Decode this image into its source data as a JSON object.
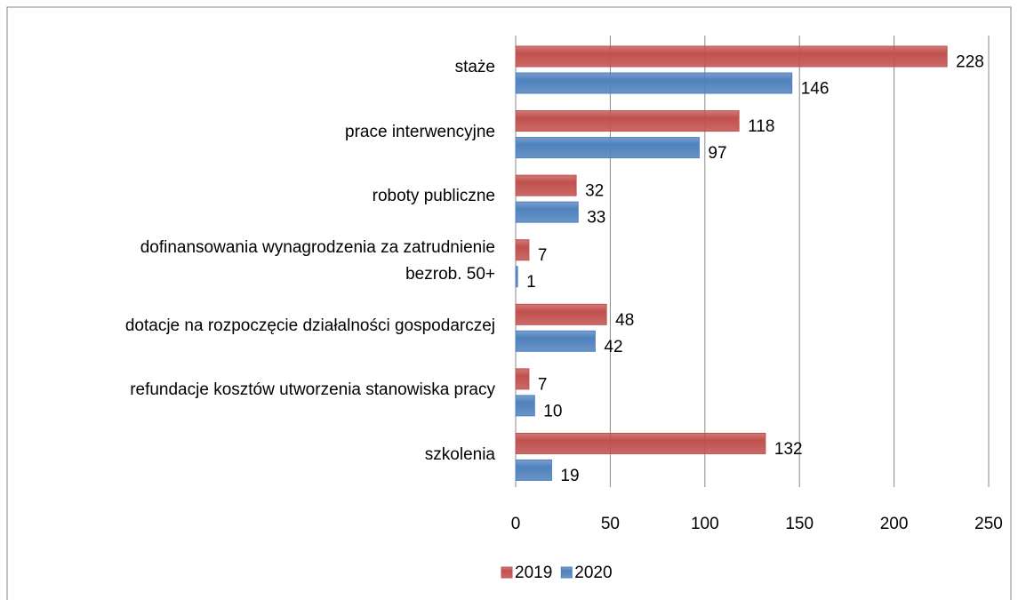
{
  "chart_data": {
    "type": "hbar",
    "categories": [
      "staże",
      "prace interwencyjne",
      "roboty publiczne",
      "dofinansowania wynagrodzenia za zatrudnienie\nbezrob. 50+",
      "dotacje na rozpoczęcie działalności gospodarczej",
      "refundacje kosztów utworzenia stanowiska pracy",
      "szkolenia"
    ],
    "series": [
      {
        "name": "2019",
        "color": "#c0504d",
        "values": [
          228,
          118,
          32,
          7,
          48,
          7,
          132
        ]
      },
      {
        "name": "2020",
        "color": "#4f81bd",
        "values": [
          146,
          97,
          33,
          1,
          42,
          10,
          19
        ]
      }
    ],
    "xlim": [
      0,
      250
    ],
    "xticks": [
      0,
      50,
      100,
      150,
      200,
      250
    ],
    "grid": true,
    "legend": "bottom"
  }
}
